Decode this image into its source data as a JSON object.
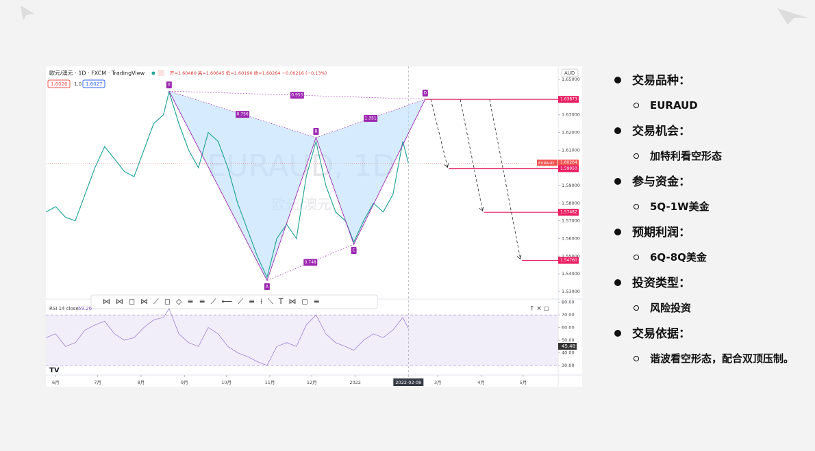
{
  "chart_data": [
    {
      "type": "line",
      "title": "欧元/澳元 · 1D · FXCM · TradingView",
      "ohlc_text": "开=1.60480 高=1.60645 低=1.60190 收=1.60264 −0.00216 (−0.13%)",
      "bid": "1.6026",
      "spread": "1.0",
      "ask": "1.6027",
      "currency": "AUD",
      "watermark": "EURAUD, 1D",
      "watermark_sub": "欧元/澳元",
      "color": "#26a69a",
      "x": [
        -7,
        0,
        7,
        14,
        21,
        28,
        35,
        42,
        49,
        56,
        63,
        70,
        77,
        81,
        88,
        95,
        102,
        109,
        116,
        123,
        130,
        137,
        144,
        151,
        158,
        165,
        172,
        179,
        186,
        193,
        200,
        207,
        213,
        220,
        227,
        234,
        241,
        248,
        252
      ],
      "values": [
        1.575,
        1.578,
        1.572,
        1.57,
        1.585,
        1.6,
        1.612,
        1.605,
        1.598,
        1.595,
        1.61,
        1.625,
        1.63,
        1.643,
        1.625,
        1.61,
        1.6,
        1.62,
        1.615,
        1.6,
        1.58,
        1.565,
        1.55,
        1.538,
        1.56,
        1.568,
        1.56,
        1.595,
        1.615,
        1.59,
        1.575,
        1.57,
        1.558,
        1.57,
        1.58,
        1.575,
        1.585,
        1.615,
        1.6026
      ],
      "xlim": [
        -7,
        359
      ],
      "ylim": [
        1.5257,
        1.6574
      ],
      "yticks": [
        {
          "value": 1.65,
          "label": "1.65000"
        },
        {
          "value": 1.63,
          "label": "1.63000"
        },
        {
          "value": 1.62,
          "label": "1.62000"
        },
        {
          "value": 1.61,
          "label": "1.61000"
        },
        {
          "value": 1.59,
          "label": "1.59000"
        },
        {
          "value": 1.58,
          "label": "1.58000"
        },
        {
          "value": 1.57,
          "label": "1.57000"
        },
        {
          "value": 1.56,
          "label": "1.56000"
        },
        {
          "value": 1.55,
          "label": "1.55000"
        },
        {
          "value": 1.54,
          "label": "1.54000"
        },
        {
          "value": 1.53,
          "label": "1.53000"
        }
      ],
      "pattern": {
        "labels": [
          "X",
          "A",
          "B",
          "C",
          "D"
        ],
        "x": [
          81,
          151,
          186,
          213,
          264
        ],
        "y": [
          1.6434,
          1.5362,
          1.6171,
          1.5567,
          1.6388
        ]
      },
      "ratios": [
        0.756,
        1.351,
        0.955,
        0.748
      ],
      "targets": [
        {
          "price": 1.63873,
          "label": "1.63873",
          "from": 264
        },
        {
          "price": 1.5995,
          "label": "1.59950",
          "from": 281
        },
        {
          "price": 1.57482,
          "label": "1.57482",
          "from": 306
        },
        {
          "price": 1.5476,
          "label": "1.54760",
          "from": 333
        }
      ],
      "current": {
        "price": 1.60264,
        "label": "1.60264",
        "symbol": "EURAUD",
        "time": "19:42:22"
      }
    },
    {
      "type": "line",
      "title": "RSI 14 close",
      "last_label": "59.26",
      "side_label": "45.48",
      "color": "#9c7fd0",
      "x": [
        -7,
        0,
        7,
        14,
        21,
        28,
        35,
        42,
        49,
        56,
        63,
        70,
        77,
        81,
        88,
        95,
        102,
        109,
        116,
        123,
        130,
        137,
        144,
        151,
        158,
        165,
        172,
        179,
        186,
        193,
        200,
        207,
        213,
        220,
        227,
        234,
        241,
        248,
        252
      ],
      "values": [
        52,
        55,
        45,
        48,
        58,
        62,
        65,
        55,
        50,
        52,
        60,
        66,
        68,
        75,
        55,
        48,
        45,
        60,
        55,
        45,
        40,
        37,
        33,
        30,
        45,
        48,
        45,
        62,
        70,
        55,
        48,
        45,
        42,
        50,
        55,
        52,
        58,
        68,
        59.26
      ],
      "xlim": [
        -7,
        359
      ],
      "ylim": [
        24,
        82
      ],
      "yticks": [
        {
          "value": 80,
          "label": "80.00"
        },
        {
          "value": 70,
          "label": "70.00"
        },
        {
          "value": 60,
          "label": "60.00"
        },
        {
          "value": 50,
          "label": "50.00"
        },
        {
          "value": 40,
          "label": "40.00"
        },
        {
          "value": 30,
          "label": "30.00"
        }
      ],
      "band": [
        30,
        70
      ],
      "xticks": [
        {
          "value": 0,
          "label": "6月"
        },
        {
          "value": 30,
          "label": "7月"
        },
        {
          "value": 61,
          "label": "8月"
        },
        {
          "value": 92,
          "label": "9月"
        },
        {
          "value": 122,
          "label": "10月"
        },
        {
          "value": 153,
          "label": "11月"
        },
        {
          "value": 183,
          "label": "12月"
        },
        {
          "value": 214,
          "label": "2022"
        },
        {
          "value": 252,
          "label": "2022-02-08"
        },
        {
          "value": 273,
          "label": "3月"
        },
        {
          "value": 304,
          "label": "4月"
        },
        {
          "value": 334,
          "label": "5月"
        }
      ]
    }
  ],
  "bullets": [
    {
      "text": "交易品种：",
      "sub": "EURAUD"
    },
    {
      "text": "交易机会：",
      "sub": "加特利看空形态"
    },
    {
      "text": "参与资金：",
      "sub": "5Q-1W美金"
    },
    {
      "text": "预期利润：",
      "sub": "6Q-8Q美金"
    },
    {
      "text": "投资类型：",
      "sub": "风险投资"
    },
    {
      "text": "交易依据：",
      "sub": "谐波看空形态，配合双顶压制。"
    }
  ]
}
